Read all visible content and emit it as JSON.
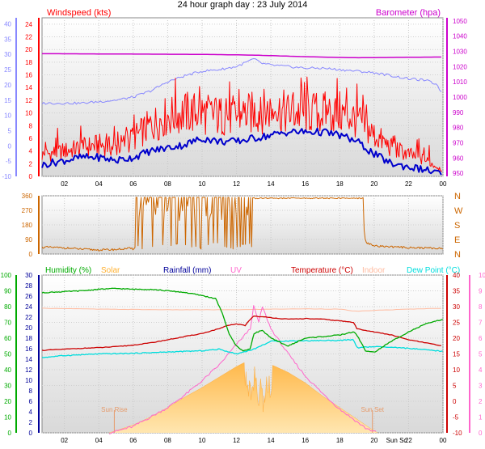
{
  "title": "24 hour graph day : 23 July 2014",
  "colors": {
    "windspeed": "#ff0000",
    "gust": "#ff0000",
    "avg_wind": "#0000cc",
    "barometer": "#cc00cc",
    "wind_axis_right": "#8888ff",
    "direction": "#cc6600",
    "humidity": "#00aa00",
    "solar": "#ffb030",
    "rainfall": "#000099",
    "uv": "#ff66cc",
    "temperature": "#cc0000",
    "indoor": "#ffbba0",
    "dewpoint": "#00dddd"
  },
  "chart_data": [
    {
      "type": "line",
      "title": "24 hour graph day : 23 July 2014",
      "xlabel": "",
      "x_ticks": [
        "02",
        "04",
        "06",
        "08",
        "10",
        "12",
        "14",
        "16",
        "18",
        "20",
        "22",
        "00"
      ],
      "left_axis": {
        "label": "Windspeed (kts)",
        "ticks": [
          "24",
          "22",
          "20",
          "18",
          "16",
          "14",
          "12",
          "10",
          "8",
          "6",
          "4",
          "2",
          "0"
        ],
        "ylim": [
          0,
          25
        ]
      },
      "outer_left_axis": {
        "ticks": [
          "40",
          "35",
          "30",
          "25",
          "20",
          "15",
          "10",
          "5",
          "0",
          "-5",
          "-10"
        ],
        "ylim": [
          -10,
          42
        ]
      },
      "right_axis": {
        "label": "Barometer (hpa)",
        "ticks": [
          "1050",
          "1040",
          "1030",
          "1020",
          "1010",
          "1000",
          "990",
          "980",
          "970",
          "960",
          "950"
        ],
        "ylim": [
          948,
          1052
        ]
      },
      "series": [
        {
          "name": "Barometer (hpa)",
          "axis": "right",
          "x": [
            0,
            2,
            4,
            6,
            8,
            10,
            12,
            13,
            14,
            16,
            18,
            19,
            20,
            22,
            24
          ],
          "y": [
            1028.5,
            1028.4,
            1028.3,
            1028.2,
            1028.1,
            1028.0,
            1027.7,
            1027.5,
            1027.2,
            1026.5,
            1026.0,
            1025.8,
            1025.9,
            1026.1,
            1026.3
          ]
        },
        {
          "name": "Windspeed (kts)",
          "axis": "left",
          "x": [
            0,
            1,
            2,
            3,
            4,
            5,
            6,
            7,
            8,
            9,
            10,
            11,
            12,
            13,
            14,
            15,
            16,
            17,
            18,
            19,
            20,
            21,
            22,
            23,
            24
          ],
          "y": [
            3,
            3.5,
            4,
            4.5,
            5,
            4.5,
            6,
            8,
            9.5,
            10,
            10,
            9.5,
            9.5,
            10,
            10.5,
            10,
            10,
            10,
            10,
            9,
            6.5,
            4.5,
            3.5,
            2.5,
            1
          ]
        },
        {
          "name": "avg",
          "axis": "left",
          "x": [
            0,
            1,
            2,
            3,
            4,
            5,
            6,
            7,
            8,
            9,
            10,
            11,
            12,
            13,
            14,
            15,
            16,
            17,
            18,
            19,
            20,
            21,
            22,
            23,
            24
          ],
          "y": [
            1,
            2,
            2.5,
            3,
            3,
            2.5,
            3,
            4,
            4.5,
            5,
            6,
            5.5,
            5.5,
            6,
            6.5,
            7,
            7,
            7,
            6.5,
            5.5,
            3.5,
            2,
            1.5,
            1,
            0.3
          ]
        },
        {
          "name": "wind_outer",
          "axis": "outer_left",
          "x": [
            0,
            1,
            2,
            3,
            4,
            5,
            6,
            7,
            8,
            9,
            10,
            11,
            12,
            12.8,
            13,
            13.5,
            14,
            15,
            16,
            17,
            18,
            19,
            20,
            21,
            22,
            23,
            23.7,
            24
          ],
          "y": [
            14,
            14,
            14,
            14,
            14.5,
            15,
            16,
            18,
            21,
            23,
            24.5,
            25,
            26,
            28,
            28.5,
            27,
            26.5,
            26,
            25.5,
            25.5,
            25,
            24.5,
            24,
            23,
            22,
            21.5,
            20,
            16
          ]
        }
      ]
    },
    {
      "type": "line",
      "x_ticks": [
        "02",
        "04",
        "06",
        "08",
        "10",
        "12",
        "14",
        "16",
        "18",
        "20",
        "22",
        "00"
      ],
      "left_axis": {
        "ticks": [
          "360",
          "270",
          "180",
          "90",
          "0"
        ],
        "ylim": [
          0,
          360
        ]
      },
      "right_axis": {
        "ticks": [
          "N",
          "W",
          "S",
          "E",
          "N"
        ]
      },
      "series": [
        {
          "name": "direction",
          "axis": "left",
          "x": [
            0,
            1,
            2,
            3,
            4,
            5,
            5.8,
            6,
            8,
            10,
            11,
            11.8,
            12,
            13,
            14,
            16,
            18,
            19.2,
            19.5,
            20,
            22,
            24
          ],
          "y": [
            40,
            42,
            38,
            30,
            25,
            28,
            35,
            30,
            340,
            345,
            350,
            310,
            60,
            330,
            345,
            350,
            350,
            345,
            70,
            50,
            40,
            35
          ]
        }
      ]
    },
    {
      "type": "line",
      "x_ticks": [
        "02",
        "04",
        "06",
        "08",
        "10",
        "12",
        "14",
        "16",
        "18",
        "20",
        "Sun Sc",
        "22",
        "00"
      ],
      "legend": [
        "Humidity  (%)",
        "Solar",
        "Rainfall (mm)",
        "UV",
        "Temperature (°C)",
        "Indoor",
        "Dew Point (°C)"
      ],
      "annotations": [
        "Sun Rise",
        "Sun Set"
      ],
      "humidity_axis": {
        "ticks": [
          "100",
          "90",
          "80",
          "70",
          "60",
          "50",
          "40",
          "30",
          "20",
          "10",
          "0"
        ],
        "ylim": [
          0,
          100
        ]
      },
      "mid_axis": {
        "ticks": [
          "30",
          "28",
          "26",
          "24",
          "22",
          "20",
          "18",
          "16",
          "14",
          "12",
          "10",
          "8",
          "6",
          "4",
          "2",
          "0"
        ],
        "ylim": [
          0,
          30
        ]
      },
      "temp_axis": {
        "ticks": [
          "40",
          "35",
          "30",
          "25",
          "20",
          "15",
          "10",
          "5",
          "0",
          "-5",
          "-10"
        ],
        "ylim": [
          -10,
          40
        ]
      },
      "uv_axis": {
        "ticks": [
          "10",
          "9",
          "8",
          "7",
          "6",
          "5",
          "4",
          "3",
          "2",
          "1",
          "0"
        ],
        "ylim": [
          0,
          10
        ]
      },
      "series": [
        {
          "name": "Humidity",
          "axis": "humidity",
          "x": [
            0,
            1,
            2,
            3,
            4,
            5,
            6,
            7,
            8,
            9,
            10,
            10.8,
            11,
            11.2,
            11.6,
            12,
            12.4,
            12.8,
            13,
            13.5,
            14,
            14.6,
            15,
            16,
            17,
            18,
            18.8,
            19,
            19.5,
            20,
            21,
            22,
            23,
            24
          ],
          "y": [
            88,
            89,
            89.5,
            90,
            91,
            91.5,
            91,
            91,
            90,
            89,
            87,
            85,
            80,
            75,
            62,
            55,
            52,
            53,
            63,
            65,
            60,
            57,
            55,
            60,
            61,
            62,
            64,
            62,
            52,
            51,
            58,
            64,
            69,
            72
          ]
        },
        {
          "name": "Temperature",
          "axis": "temp",
          "x": [
            0,
            1,
            2,
            3,
            4,
            5,
            6,
            7,
            8,
            9,
            10,
            11,
            11.5,
            12,
            12.5,
            12.8,
            13,
            14,
            15,
            16,
            17,
            18,
            18.8,
            19,
            20,
            21,
            22,
            23,
            24
          ],
          "y": [
            16,
            16.2,
            16.5,
            16.8,
            17,
            17.3,
            17.8,
            18.5,
            19.5,
            20.5,
            21.5,
            23,
            24,
            24.5,
            24,
            26,
            27,
            26.5,
            26,
            26.2,
            26,
            25.5,
            25,
            23,
            22,
            21,
            19.5,
            18.5,
            17.5
          ]
        },
        {
          "name": "Dew Point",
          "axis": "temp",
          "x": [
            0,
            2,
            4,
            6,
            8,
            10,
            11,
            12,
            13,
            14,
            16,
            18,
            18.8,
            19,
            20,
            22,
            24
          ],
          "y": [
            13.5,
            14.5,
            15,
            15.2,
            15.6,
            16,
            16.5,
            15,
            16.5,
            19,
            19.2,
            19.3,
            19.5,
            17,
            17.3,
            16.8,
            15.8
          ]
        },
        {
          "name": "Indoor",
          "axis": "temp",
          "x": [
            0,
            2,
            4,
            6,
            8,
            10,
            12,
            14,
            16,
            18,
            19,
            20,
            22,
            24
          ],
          "y": [
            29.5,
            29.4,
            29.2,
            29.1,
            29,
            29,
            29,
            29.2,
            29.3,
            29.2,
            28.5,
            28.8,
            29.2,
            29.5
          ]
        },
        {
          "name": "UV",
          "axis": "uv",
          "x": [
            4.6,
            5,
            6,
            7,
            8,
            9,
            10,
            11,
            12,
            12.8,
            13,
            13.3,
            13.5,
            14,
            15,
            16,
            17,
            18,
            19,
            19.5,
            20.2
          ],
          "y": [
            0,
            0.1,
            0.4,
            1,
            1.6,
            2.4,
            3.3,
            4.3,
            5.6,
            6.6,
            8,
            7,
            8,
            6.6,
            5,
            3.6,
            2.5,
            1.5,
            0.7,
            0.3,
            0
          ]
        },
        {
          "name": "Solar",
          "axis": "mid",
          "x": [
            4.6,
            5,
            6,
            7,
            8,
            9,
            10,
            11,
            12,
            12.6,
            12.8,
            13,
            13.2,
            13.4,
            13.6,
            13.8,
            14,
            15,
            16,
            17,
            18,
            19,
            19.8,
            20.2
          ],
          "y": [
            0,
            0.4,
            1.5,
            3,
            4.8,
            6.8,
            8.6,
            10.6,
            12.6,
            13.6,
            11,
            14.5,
            9,
            13,
            7,
            14,
            13,
            11.5,
            9.5,
            7,
            4.8,
            2.6,
            0.8,
            0
          ]
        }
      ]
    }
  ]
}
